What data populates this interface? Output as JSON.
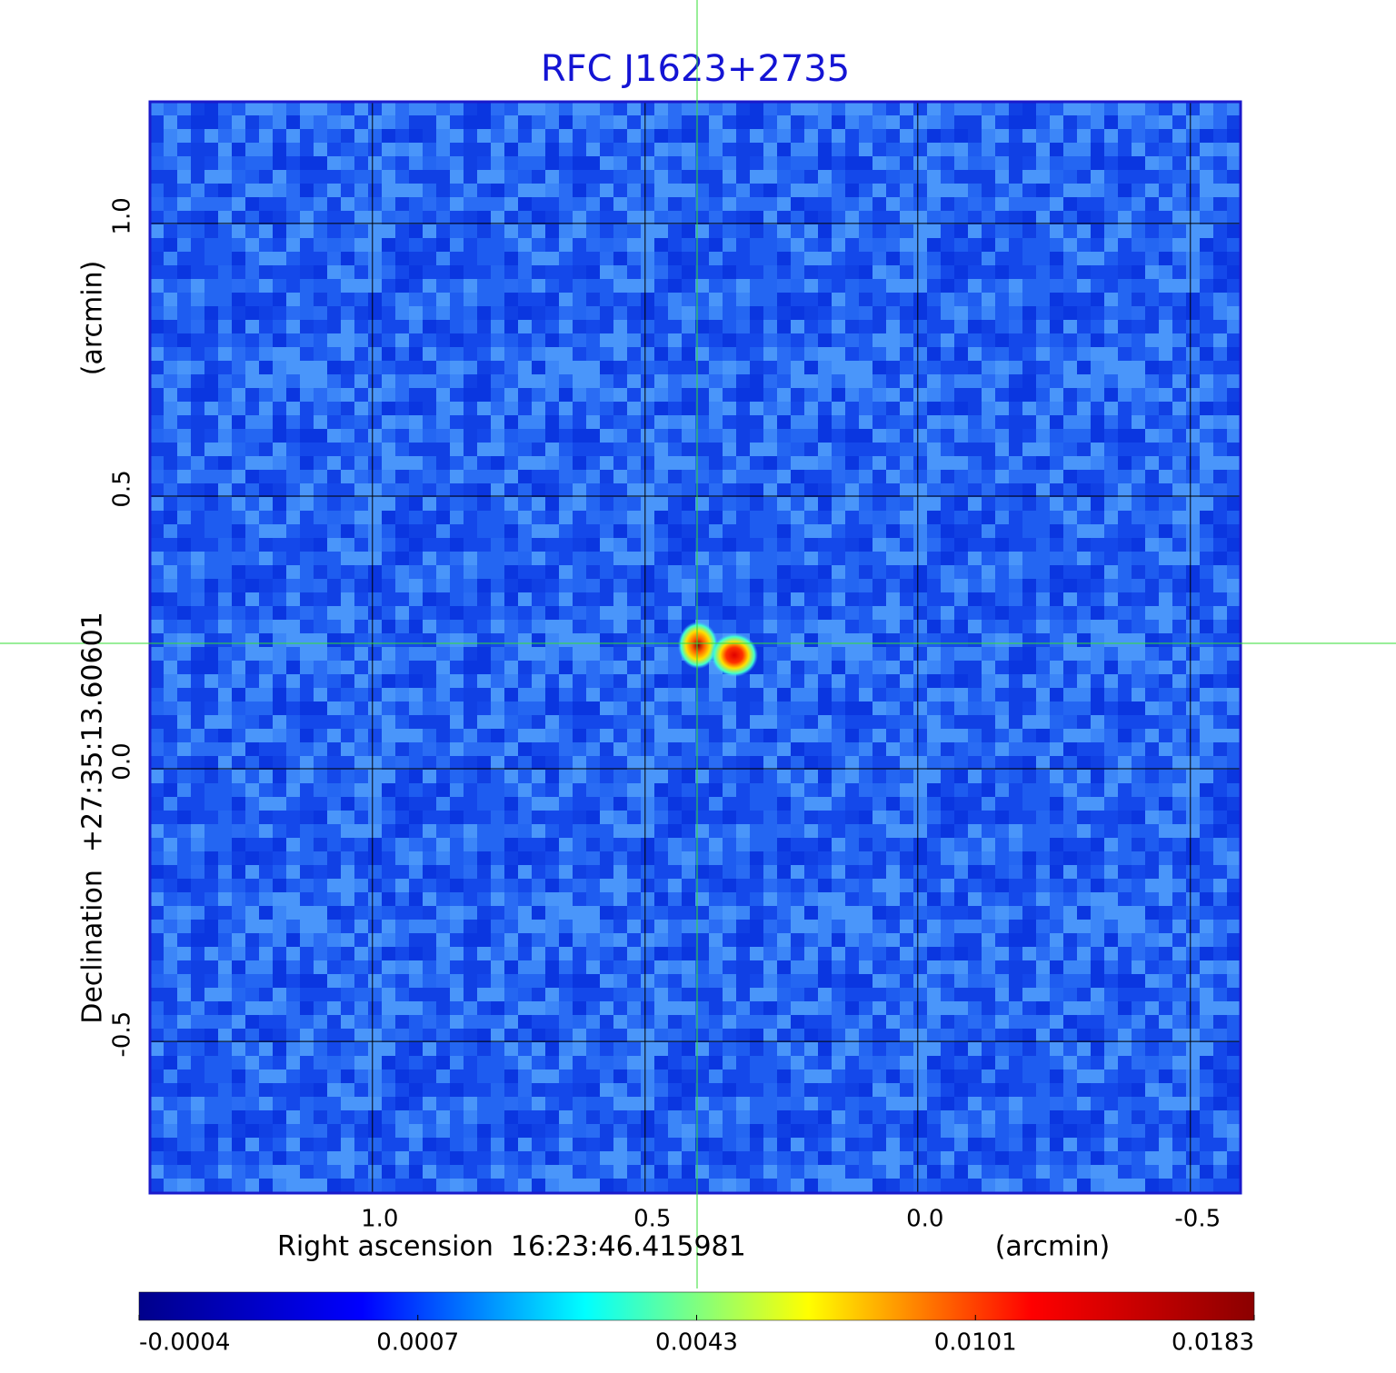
{
  "chart_data": {
    "type": "image",
    "title": "RFC J1623+2735",
    "x_label": "Right ascension  16:23:46.415981",
    "x_unit": "(arcmin)",
    "y_label": "Declination  +27:35:13.60601",
    "y_unit": "(arcmin)",
    "xlim": [
      1.408,
      -0.592
    ],
    "ylim": [
      -0.778,
      1.223
    ],
    "xticks": [
      {
        "value": 1,
        "label": "1.0"
      },
      0.5,
      {
        "value": 0,
        "label": "0.0"
      },
      -0.5
    ],
    "yticks": [
      {
        "value": 1,
        "label": "1.0"
      },
      0.5,
      {
        "value": 0,
        "label": "0.0"
      },
      -0.5
    ],
    "grid": true,
    "colorbar_ticks": [
      -0.0004,
      0.0007,
      0.0043,
      0.0101,
      0.0183
    ],
    "colormap": [
      "#00008b",
      "#0000ff",
      "#00ffff",
      "#ffff00",
      "#ff0000",
      "#8b0000"
    ]
  }
}
